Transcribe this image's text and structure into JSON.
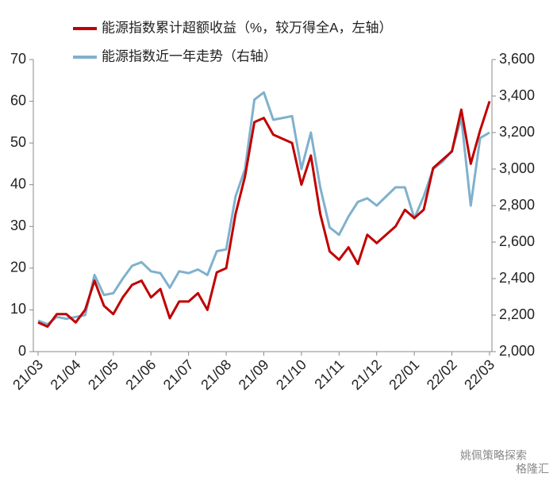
{
  "chart_data": {
    "type": "line",
    "legend": [
      "能源指数累计超额收益（%，较万得全A，左轴）",
      "能源指数近一年走势（右轴）"
    ],
    "categories": [
      "21/03",
      null,
      null,
      null,
      "21/04",
      null,
      null,
      null,
      "21/05",
      null,
      null,
      null,
      "21/06",
      null,
      null,
      null,
      "21/07",
      null,
      null,
      null,
      "21/08",
      null,
      null,
      null,
      "21/09",
      null,
      null,
      null,
      "21/10",
      null,
      null,
      null,
      "21/11",
      null,
      null,
      null,
      "21/12",
      null,
      null,
      null,
      "22/01",
      null,
      null,
      null,
      "22/02",
      null,
      null,
      null,
      "22/03"
    ],
    "series": [
      {
        "name": "能源指数累计超额收益（%，较万得全A，左轴）",
        "color": "#c00000",
        "axis": "y",
        "values": [
          7,
          6,
          9,
          9,
          7,
          10,
          17,
          11,
          9,
          13,
          16,
          17,
          13,
          15,
          8,
          12,
          12,
          14,
          10,
          19,
          20,
          33,
          42,
          55,
          56,
          52,
          51,
          50,
          40,
          47,
          33,
          24,
          22,
          25,
          21,
          28,
          26,
          28,
          30,
          34,
          32,
          34,
          44,
          46,
          48,
          58,
          45,
          53,
          60
        ]
      },
      {
        "name": "能源指数近一年走势（右轴）",
        "color": "#7fb1cc",
        "axis": "y2",
        "values": [
          2170,
          2150,
          2190,
          2180,
          2190,
          2200,
          2420,
          2310,
          2320,
          2400,
          2470,
          2490,
          2440,
          2430,
          2350,
          2440,
          2430,
          2450,
          2420,
          2550,
          2560,
          2850,
          3000,
          3380,
          3420,
          3270,
          3280,
          3290,
          3000,
          3200,
          2900,
          2680,
          2640,
          2740,
          2820,
          2840,
          2800,
          2850,
          2900,
          2900,
          2730,
          2850,
          3000,
          3040,
          3100,
          3280,
          2800,
          3170,
          3200
        ]
      }
    ],
    "ylim": [
      0,
      70
    ],
    "yticks": [
      0,
      10,
      20,
      30,
      40,
      50,
      60,
      70
    ],
    "y2lim": [
      2000,
      3600
    ],
    "y2ticks": [
      {
        "value": 2000,
        "label": "2,000"
      },
      {
        "value": 2200,
        "label": "2,200"
      },
      {
        "value": 2400,
        "label": "2,400"
      },
      {
        "value": 2600,
        "label": "2,600"
      },
      {
        "value": 2800,
        "label": "2,800"
      },
      {
        "value": 3000,
        "label": "3,000"
      },
      {
        "value": 3200,
        "label": "3,200"
      },
      {
        "value": 3400,
        "label": "3,400"
      },
      {
        "value": 3600,
        "label": "3,600"
      }
    ],
    "grid": false
  },
  "watermark": {
    "account": "姚佩策略探索",
    "brand": "格隆汇"
  }
}
